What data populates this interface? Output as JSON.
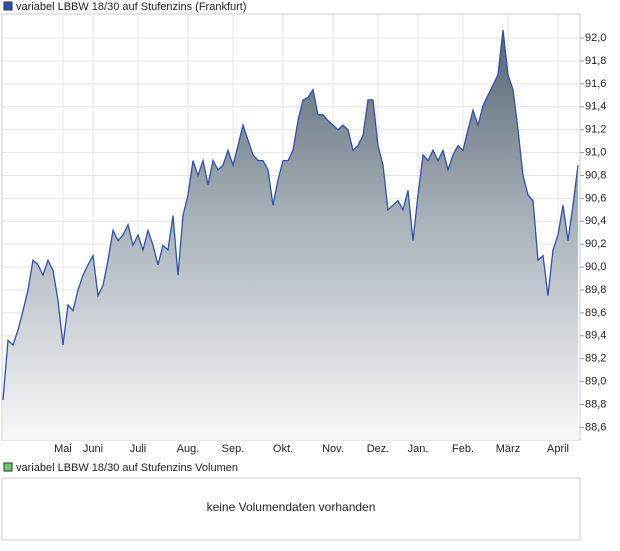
{
  "chart_data": {
    "type": "area",
    "categories": [
      null,
      null,
      null,
      null,
      null,
      null,
      null,
      null,
      null,
      null,
      null,
      null,
      "Mai",
      null,
      null,
      null,
      null,
      null,
      "Juni",
      null,
      null,
      null,
      null,
      null,
      null,
      null,
      null,
      "Juli",
      null,
      null,
      null,
      null,
      null,
      null,
      null,
      null,
      null,
      "Aug.",
      null,
      null,
      null,
      null,
      null,
      null,
      null,
      null,
      "Sep.",
      null,
      null,
      null,
      null,
      null,
      null,
      null,
      null,
      null,
      "Okt.",
      null,
      null,
      null,
      null,
      null,
      null,
      null,
      null,
      null,
      "Nov.",
      null,
      null,
      null,
      null,
      null,
      null,
      null,
      null,
      "Dez.",
      null,
      null,
      null,
      null,
      null,
      null,
      null,
      "Jan.",
      null,
      null,
      null,
      null,
      null,
      null,
      null,
      null,
      "Feb.",
      null,
      null,
      null,
      null,
      null,
      null,
      null,
      null,
      "März",
      null,
      null,
      null,
      null,
      null,
      null,
      null,
      null,
      null,
      "April",
      null,
      null,
      null,
      null
    ],
    "series": [
      {
        "name": "variabel LBBW 18/30 auf Stufenzins (Frankfurt)",
        "color": "#2b52b0",
        "values": [
          88.84,
          89.36,
          89.32,
          89.45,
          89.62,
          89.8,
          90.06,
          90.02,
          89.93,
          90.06,
          89.97,
          89.71,
          89.32,
          89.67,
          89.62,
          89.8,
          89.93,
          90.02,
          90.1,
          89.75,
          89.84,
          90.06,
          90.32,
          90.23,
          90.28,
          90.37,
          90.19,
          90.28,
          90.15,
          90.32,
          90.19,
          90.02,
          90.19,
          90.15,
          90.45,
          89.93,
          90.45,
          90.63,
          90.93,
          90.8,
          90.93,
          90.72,
          90.93,
          90.85,
          90.89,
          91.02,
          90.89,
          91.06,
          91.24,
          91.11,
          90.98,
          90.93,
          90.93,
          90.85,
          90.54,
          90.76,
          90.93,
          90.93,
          91.02,
          91.28,
          91.46,
          91.48,
          91.55,
          91.33,
          91.33,
          91.28,
          91.24,
          91.2,
          91.24,
          91.2,
          91.02,
          91.06,
          91.15,
          91.46,
          91.46,
          91.06,
          90.89,
          90.5,
          90.54,
          90.58,
          90.5,
          90.67,
          90.23,
          90.63,
          90.98,
          90.93,
          91.02,
          90.93,
          91.02,
          90.85,
          90.98,
          91.06,
          91.02,
          91.2,
          91.37,
          91.24,
          91.41,
          91.5,
          91.59,
          91.68,
          92.07,
          91.68,
          91.55,
          91.2,
          90.8,
          90.63,
          90.58,
          90.06,
          90.1,
          89.75,
          90.15,
          90.28,
          90.54,
          90.23,
          90.54,
          90.89
        ]
      }
    ],
    "ylim": [
      88.49,
      92.21
    ],
    "yticks": [
      {
        "value": 88.6,
        "label": "88,6"
      },
      {
        "value": 88.8,
        "label": "88,8"
      },
      {
        "value": 89.0,
        "label": "89,0"
      },
      {
        "value": 89.2,
        "label": "89,2"
      },
      {
        "value": 89.4,
        "label": "89,4"
      },
      {
        "value": 89.6,
        "label": "89,6"
      },
      {
        "value": 89.8,
        "label": "89,8"
      },
      {
        "value": 90.0,
        "label": "90,0"
      },
      {
        "value": 90.2,
        "label": "90,2"
      },
      {
        "value": 90.4,
        "label": "90,4"
      },
      {
        "value": 90.6,
        "label": "90,6"
      },
      {
        "value": 90.8,
        "label": "90,8"
      },
      {
        "value": 91.0,
        "label": "91,0"
      },
      {
        "value": 91.2,
        "label": "91,2"
      },
      {
        "value": 91.4,
        "label": "91,4"
      },
      {
        "value": 91.6,
        "label": "91,6"
      },
      {
        "value": 91.8,
        "label": "91,8"
      },
      {
        "value": 92.0,
        "label": "92,0"
      }
    ],
    "grid": true
  },
  "volume_panel": {
    "title": "variabel LBBW 18/30 auf Stufenzins Volumen",
    "color": "#66cc66",
    "message": "keine Volumendaten vorhanden"
  }
}
